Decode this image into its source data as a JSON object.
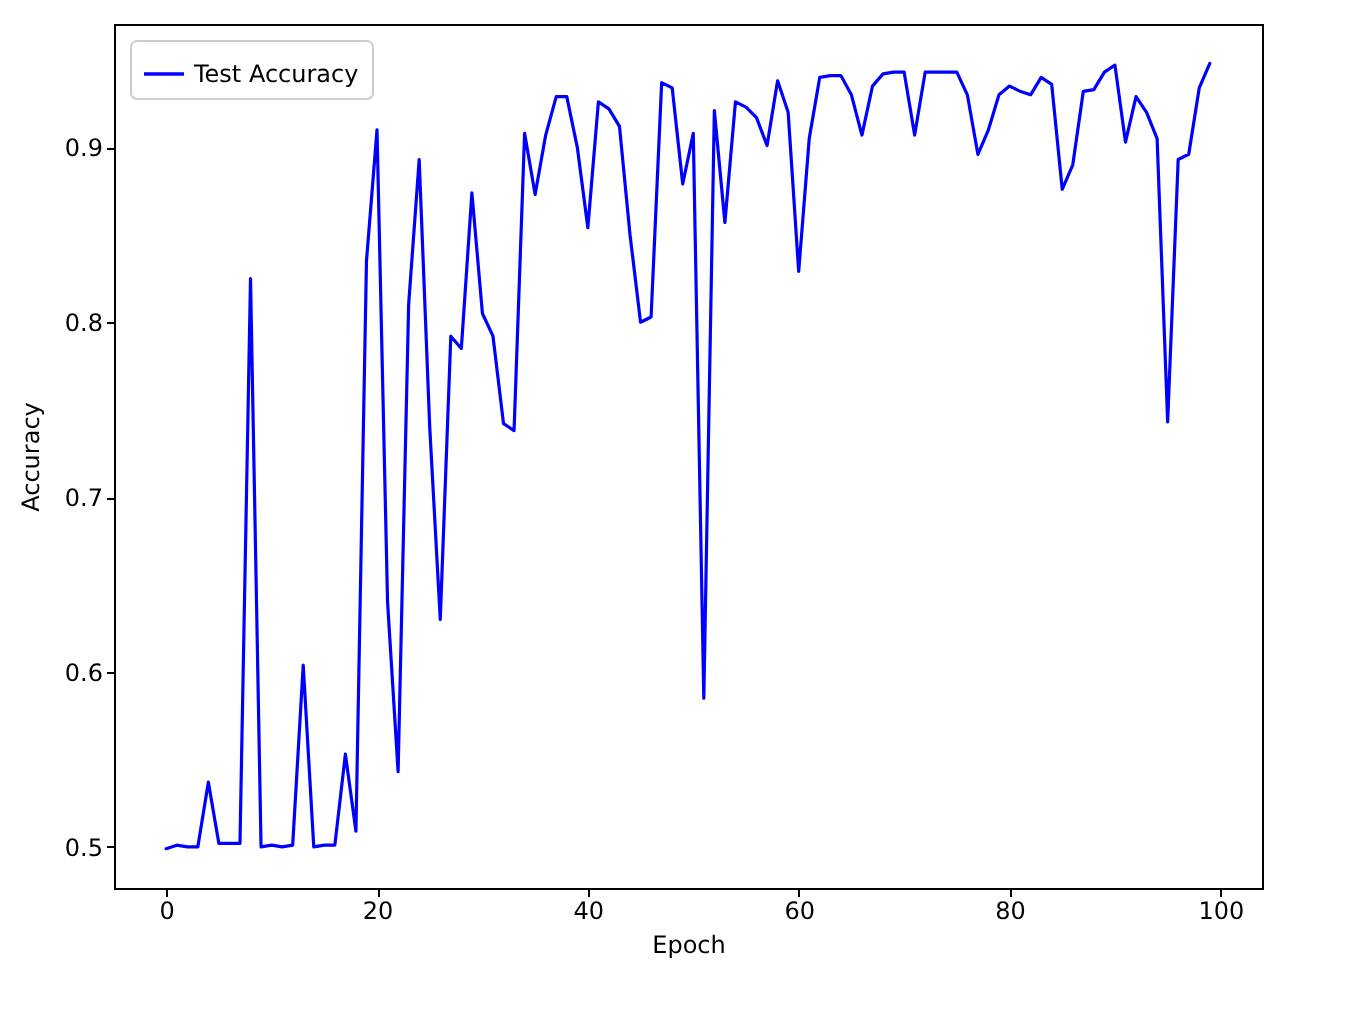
{
  "chart_data": {
    "type": "line",
    "xlabel": "Epoch",
    "ylabel": "Accuracy",
    "x": [
      0,
      1,
      2,
      3,
      4,
      5,
      6,
      7,
      8,
      9,
      10,
      11,
      12,
      13,
      14,
      15,
      16,
      17,
      18,
      19,
      20,
      21,
      22,
      23,
      24,
      25,
      26,
      27,
      28,
      29,
      30,
      31,
      32,
      33,
      34,
      35,
      36,
      37,
      38,
      39,
      40,
      41,
      42,
      43,
      44,
      45,
      46,
      47,
      48,
      49,
      50,
      51,
      52,
      53,
      54,
      55,
      56,
      57,
      58,
      59,
      60,
      61,
      62,
      63,
      64,
      65,
      66,
      67,
      68,
      69,
      70,
      71,
      72,
      73,
      74,
      75,
      76,
      77,
      78,
      79,
      80,
      81,
      82,
      83,
      84,
      85,
      86,
      87,
      88,
      89,
      90,
      91,
      92,
      93,
      94,
      95,
      96,
      97,
      98,
      99
    ],
    "series": [
      {
        "name": "Test Accuracy",
        "color": "#0000ff",
        "values": [
          0.499,
          0.501,
          0.5,
          0.5,
          0.537,
          0.502,
          0.502,
          0.502,
          0.825,
          0.5,
          0.501,
          0.5,
          0.501,
          0.604,
          0.5,
          0.501,
          0.501,
          0.553,
          0.509,
          0.835,
          0.91,
          0.64,
          0.543,
          0.81,
          0.893,
          0.74,
          0.63,
          0.792,
          0.785,
          0.874,
          0.805,
          0.792,
          0.742,
          0.738,
          0.908,
          0.873,
          0.907,
          0.929,
          0.929,
          0.9,
          0.854,
          0.926,
          0.922,
          0.912,
          0.85,
          0.8,
          0.803,
          0.937,
          0.934,
          0.879,
          0.908,
          0.585,
          0.921,
          0.857,
          0.926,
          0.923,
          0.917,
          0.901,
          0.938,
          0.92,
          0.829,
          0.905,
          0.94,
          0.941,
          0.941,
          0.93,
          0.907,
          0.935,
          0.942,
          0.943,
          0.943,
          0.907,
          0.943,
          0.943,
          0.943,
          0.943,
          0.93,
          0.896,
          0.91,
          0.93,
          0.935,
          0.932,
          0.93,
          0.94,
          0.936,
          0.876,
          0.89,
          0.932,
          0.933,
          0.943,
          0.947,
          0.903,
          0.929,
          0.92,
          0.905,
          0.743,
          0.893,
          0.896,
          0.934,
          0.948
        ]
      }
    ],
    "xlim": [
      -4.95,
      103.95
    ],
    "xticks": [
      0,
      20,
      40,
      60,
      80,
      100
    ],
    "ylim": [
      0.4765,
      0.9705
    ],
    "yticks": [
      0.5,
      0.6,
      0.7,
      0.8,
      0.9
    ],
    "grid": false,
    "legend": "top left",
    "marker": "none",
    "line_style": "solid"
  }
}
